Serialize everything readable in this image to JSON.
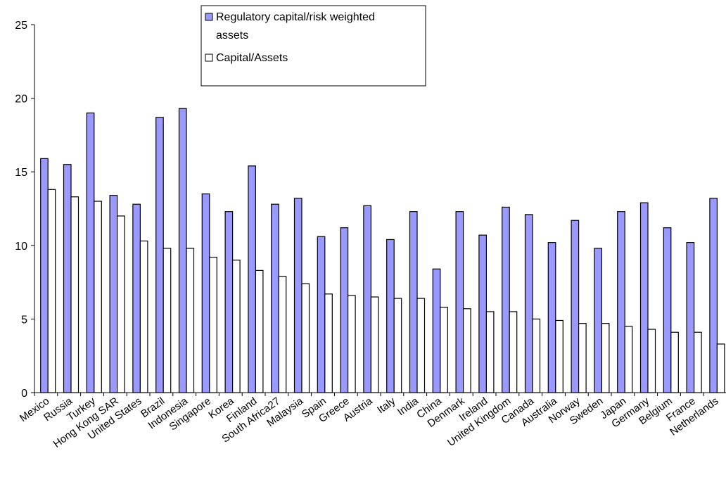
{
  "chart_data": {
    "type": "bar",
    "title": "",
    "xlabel": "",
    "ylabel": "",
    "ylim": [
      0,
      25
    ],
    "yticks": [
      0,
      5,
      10,
      15,
      20,
      25
    ],
    "grid": false,
    "legend_position": "top-center",
    "categories": [
      "Mexico",
      "Russia",
      "Turkey",
      "Hong Kong SAR",
      "United States",
      "Brazil",
      "Indonesia",
      "Singapore",
      "Korea",
      "Finland",
      "South Africa27",
      "Malaysia",
      "Spain",
      "Greece",
      "Austria",
      "Italy",
      "India",
      "China",
      "Denmark",
      "Ireland",
      "United Kingdom",
      "Canada",
      "Australia",
      "Norway",
      "Sweden",
      "Japan",
      "Germany",
      "Belgium",
      "France",
      "Netherlands"
    ],
    "series": [
      {
        "name": "Regulatory capital/risk weighted assets",
        "color": "#9999ff",
        "values": [
          15.9,
          15.5,
          19.0,
          13.4,
          12.8,
          18.7,
          19.3,
          13.5,
          12.3,
          15.4,
          12.8,
          13.2,
          10.6,
          11.2,
          12.7,
          10.4,
          12.3,
          8.4,
          12.3,
          10.7,
          12.6,
          12.1,
          10.2,
          11.7,
          9.8,
          12.3,
          12.9,
          11.2,
          10.2,
          13.2
        ]
      },
      {
        "name": "Capital/Assets",
        "color": "#ffffff",
        "values": [
          13.8,
          13.3,
          13.0,
          12.0,
          10.3,
          9.8,
          9.8,
          9.2,
          9.0,
          8.3,
          7.9,
          7.4,
          6.7,
          6.6,
          6.5,
          6.4,
          6.4,
          5.8,
          5.7,
          5.5,
          5.5,
          5.0,
          4.9,
          4.7,
          4.7,
          4.5,
          4.3,
          4.1,
          4.1,
          3.3
        ]
      }
    ]
  }
}
